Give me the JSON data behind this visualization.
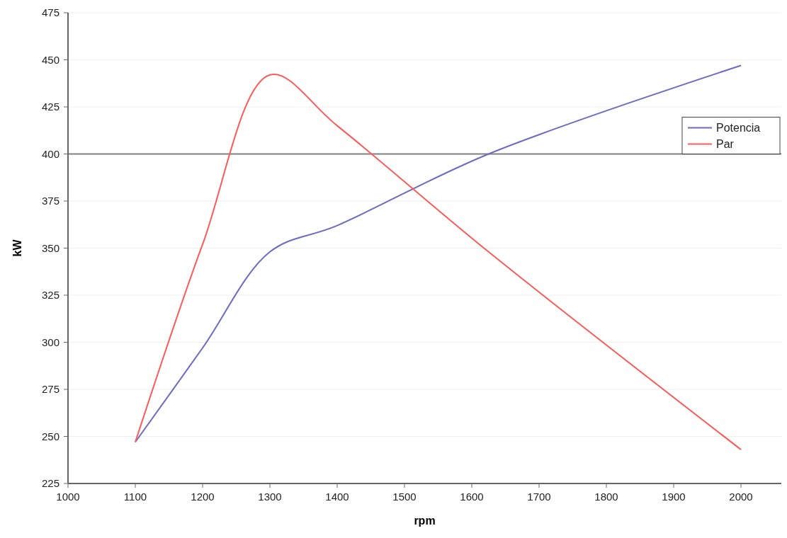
{
  "chart_data": {
    "type": "line",
    "xlabel": "rpm",
    "ylabel": "kW",
    "xlim": [
      1000,
      2060
    ],
    "xticks": [
      1000,
      1100,
      1200,
      1300,
      1400,
      1500,
      1600,
      1700,
      1800,
      1900,
      2000
    ],
    "ylim": [
      225,
      475
    ],
    "yticks": [
      225,
      250,
      275,
      300,
      325,
      350,
      375,
      400,
      425,
      450,
      475
    ],
    "grid": "y",
    "legend": "top right",
    "marker": "none",
    "line_style": "solid",
    "ref_lines": [
      {
        "axis": "y",
        "value": 400,
        "color": "#808080"
      }
    ],
    "series": [
      {
        "name": "Potencia",
        "color": "#6b6bc4",
        "x": [
          1100,
          1200,
          1300,
          1400,
          1625,
          2000
        ],
        "values": [
          247,
          297,
          348,
          362,
          400,
          447
        ]
      },
      {
        "name": "Par",
        "color": "#ff5a5a",
        "x": [
          1100,
          1200,
          1300,
          1400,
          1625,
          2000
        ],
        "values": [
          247,
          352,
          442,
          415,
          348,
          243
        ]
      }
    ]
  }
}
